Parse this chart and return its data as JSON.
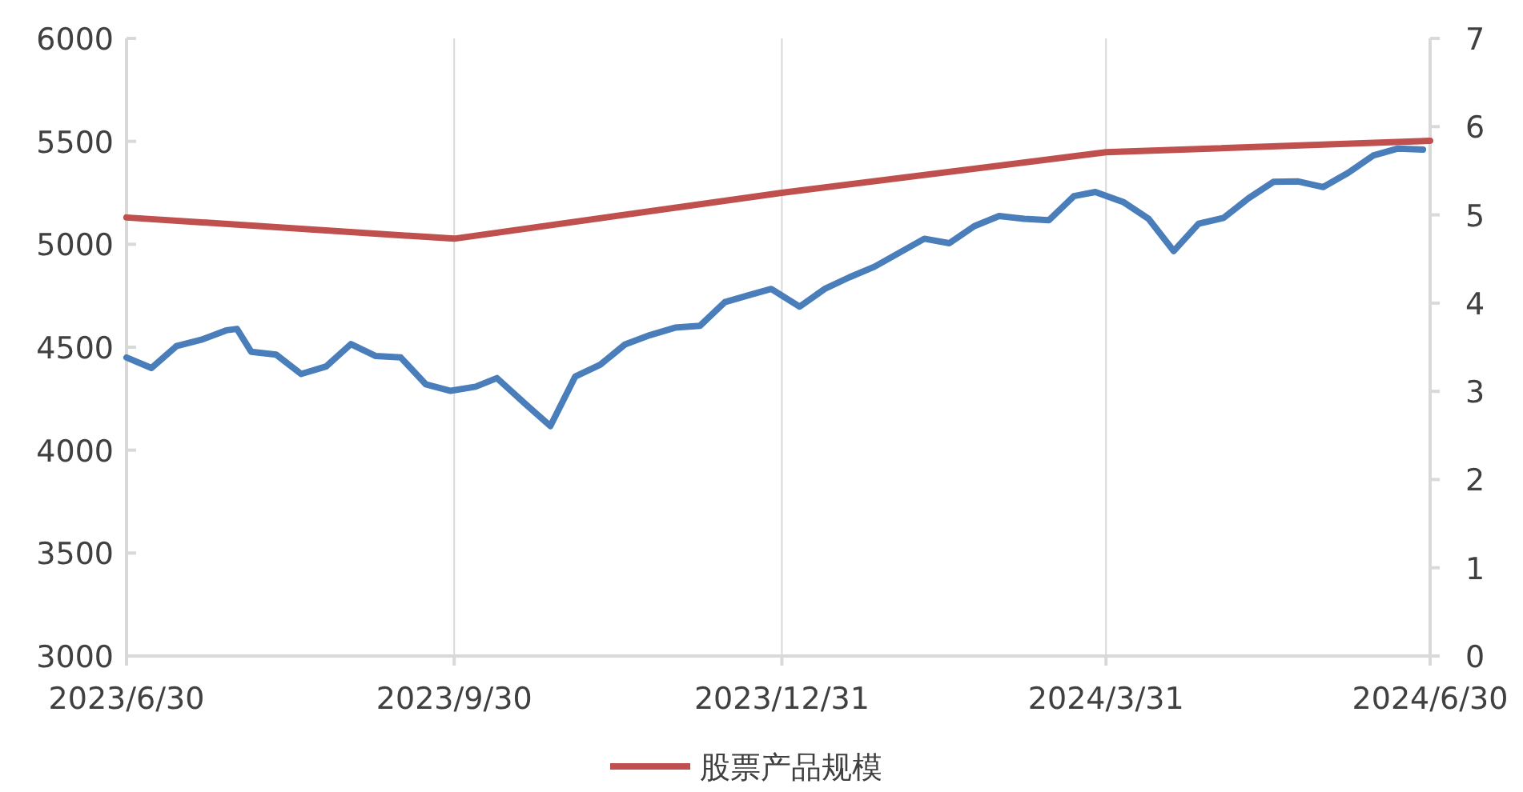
{
  "chart_data": {
    "type": "line",
    "xlim": [
      "2023-06-30",
      "2024-06-30"
    ],
    "xticks": [
      {
        "value": "2023-06-30",
        "label": "2023/6/30"
      },
      {
        "value": "2023-09-30",
        "label": "2023/9/30"
      },
      {
        "value": "2023-12-31",
        "label": "2023/12/31"
      },
      {
        "value": "2024-03-31",
        "label": "2024/3/31"
      },
      {
        "value": "2024-06-30",
        "label": "2024/6/30"
      }
    ],
    "ylim": [
      3000,
      6000
    ],
    "yticks": [
      3000,
      3500,
      4000,
      4500,
      5000,
      5500,
      6000
    ],
    "y2lim": [
      0,
      7
    ],
    "y2ticks": [
      0,
      1,
      2,
      3,
      4,
      5,
      6,
      7
    ],
    "grid": "x",
    "legend": "bottom",
    "marker": "none",
    "line_style": "solid",
    "series": [
      {
        "color": "#4a7ebb",
        "x": [
          "2023-06-30",
          "2023-07-07",
          "2023-07-14",
          "2023-07-21",
          "2023-07-28",
          "2023-07-31",
          "2023-08-04",
          "2023-08-11",
          "2023-08-18",
          "2023-08-25",
          "2023-09-01",
          "2023-09-08",
          "2023-09-15",
          "2023-09-22",
          "2023-09-29",
          "2023-10-06",
          "2023-10-12",
          "2023-10-20",
          "2023-10-27",
          "2023-11-03",
          "2023-11-10",
          "2023-11-17",
          "2023-11-24",
          "2023-12-01",
          "2023-12-08",
          "2023-12-15",
          "2023-12-22",
          "2023-12-28",
          "2024-01-05",
          "2024-01-12",
          "2024-01-19",
          "2024-01-26",
          "2024-02-02",
          "2024-02-09",
          "2024-02-16",
          "2024-02-23",
          "2024-03-01",
          "2024-03-08",
          "2024-03-15",
          "2024-03-22",
          "2024-03-28",
          "2024-04-05",
          "2024-04-12",
          "2024-04-19",
          "2024-04-26",
          "2024-05-03",
          "2024-05-10",
          "2024-05-17",
          "2024-05-24",
          "2024-05-31",
          "2024-06-07",
          "2024-06-14",
          "2024-06-21",
          "2024-06-28"
        ],
        "values": [
          4450,
          4399,
          4505,
          4536,
          4582,
          4589,
          4478,
          4464,
          4370,
          4406,
          4515,
          4457,
          4450,
          4320,
          4288,
          4308,
          4350,
          4224,
          4117,
          4358,
          4415,
          4514,
          4559,
          4595,
          4604,
          4719,
          4754,
          4783,
          4697,
          4783,
          4840,
          4891,
          4959,
          5027,
          5005,
          5088,
          5137,
          5124,
          5117,
          5234,
          5254,
          5204,
          5123,
          4967,
          5100,
          5128,
          5223,
          5303,
          5305,
          5278,
          5347,
          5431,
          5465,
          5460
        ]
      },
      {
        "name": "股票产品规模",
        "color": "#c0504d",
        "axis": "y2",
        "x": [
          "2023-06-30",
          "2023-09-30",
          "2023-12-31",
          "2024-03-31",
          "2024-06-30"
        ],
        "values": [
          4.97,
          4.73,
          5.25,
          5.71,
          5.84
        ]
      }
    ]
  }
}
